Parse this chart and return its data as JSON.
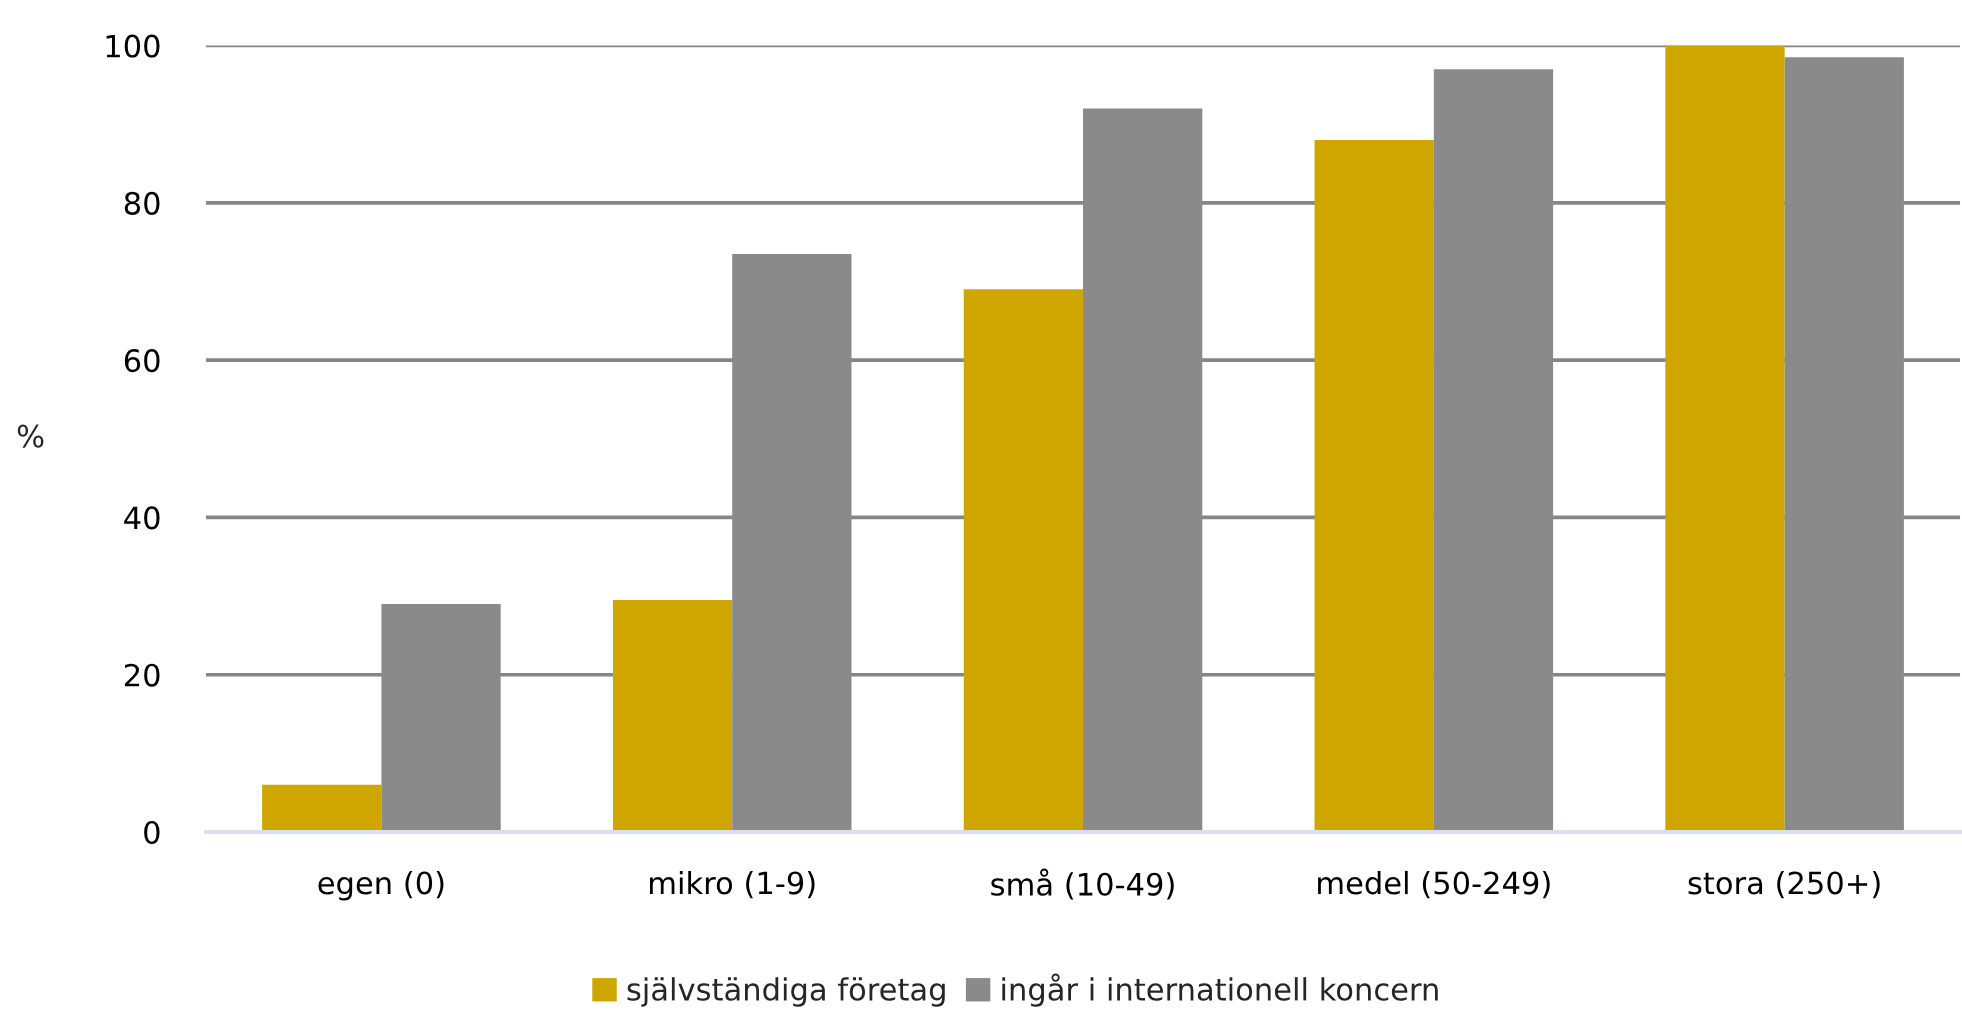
{
  "chart_data": {
    "type": "bar",
    "ylabel": "%",
    "categories": [
      "egen (0)",
      "mikro (1-9)",
      "små (10-49)",
      "medel (50-249)",
      "stora (250+)"
    ],
    "series": [
      {
        "name": "självständiga företag",
        "color": "#cfa600",
        "values": [
          6,
          29.5,
          69,
          88,
          100
        ]
      },
      {
        "name": "ingår i internationell koncern",
        "color": "#8a8a8a",
        "values": [
          29,
          73.5,
          92,
          97,
          98.5
        ]
      }
    ],
    "ylim": [
      0,
      100
    ],
    "yticks": [
      0,
      20,
      40,
      60,
      80,
      100
    ],
    "grid": "y",
    "legend": "bottom"
  }
}
